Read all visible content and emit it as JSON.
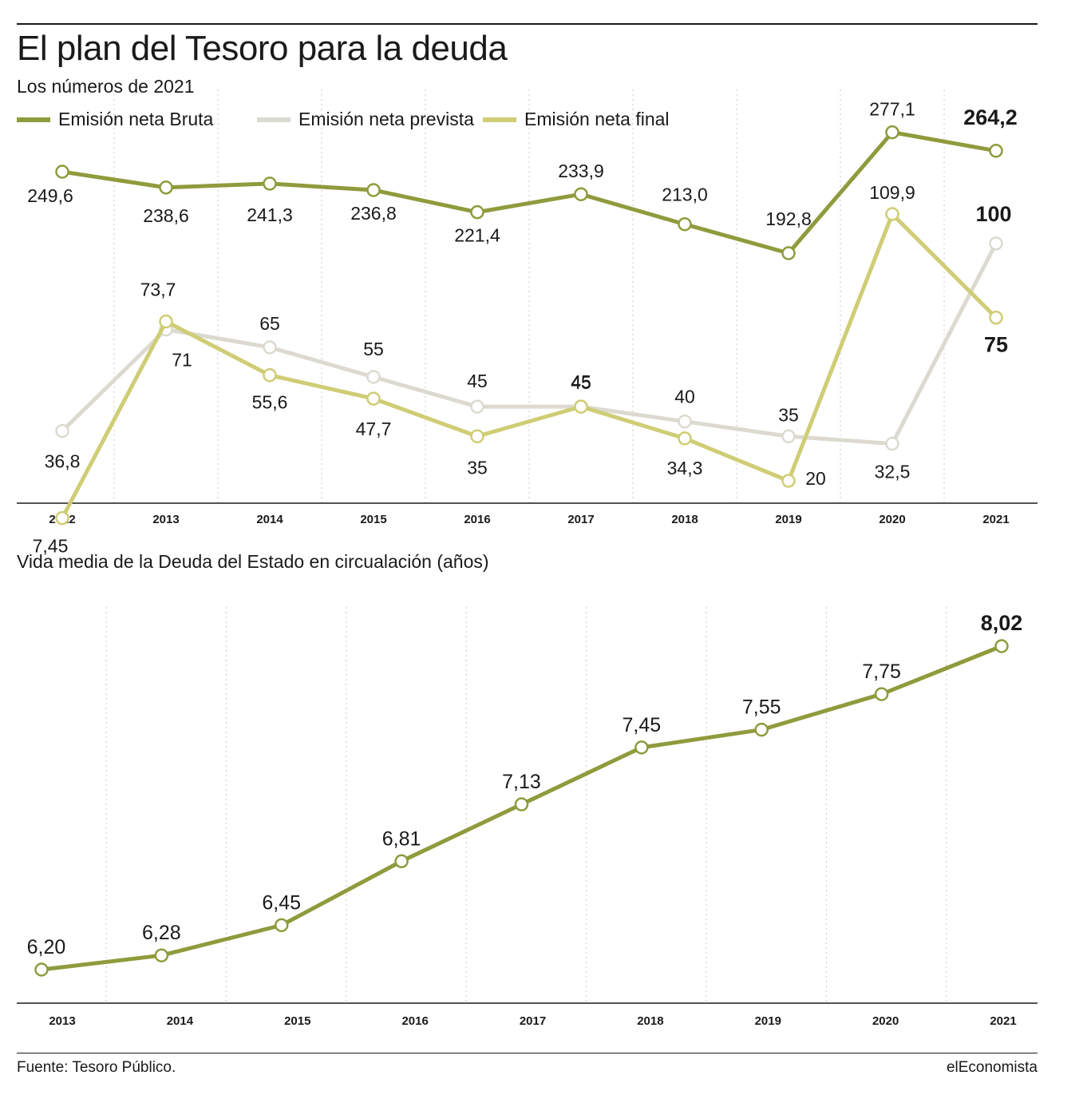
{
  "header": {
    "title": "El plan del Tesoro para la deuda",
    "subtitle": "Los números de 2021"
  },
  "chart_data": [
    {
      "type": "line",
      "categories": [
        "2012",
        "2013",
        "2014",
        "2015",
        "2016",
        "2017",
        "2018",
        "2019",
        "2020",
        "2021"
      ],
      "legend_placement": "top-left",
      "grid": "vertical dotted",
      "series": [
        {
          "name": "Emisión neta Bruta",
          "color": "#8f9b3c",
          "values": [
            249.6,
            238.6,
            241.3,
            236.8,
            221.4,
            233.9,
            213.0,
            192.8,
            277.1,
            264.2
          ],
          "labels": [
            "249,6",
            "238,6",
            "241,3",
            "236,8",
            "221,4",
            "233,9",
            "213,0",
            "192,8",
            "277,1",
            "264,2"
          ]
        },
        {
          "name": "Emisión neta prevista",
          "color": "#dcdad0",
          "values": [
            36.8,
            71,
            65,
            55,
            45,
            45,
            40,
            35,
            32.5,
            100
          ],
          "labels": [
            "36,8",
            "71",
            "65",
            "55",
            "45",
            "45",
            "40",
            "35",
            "32,5",
            "100"
          ]
        },
        {
          "name": "Emisión neta final",
          "color": "#cfcd75",
          "values": [
            7.45,
            73.7,
            55.6,
            47.7,
            35,
            45,
            34.3,
            20,
            109.9,
            75
          ],
          "labels": [
            "7,45",
            "73,7",
            "55,6",
            "47,7",
            "35",
            "45",
            "34,3",
            "20",
            "109,9",
            "75"
          ]
        }
      ]
    },
    {
      "type": "line",
      "title": "Vida media de la Deuda del Estado en circualación (años)",
      "categories": [
        "2013",
        "2014",
        "2015",
        "2016",
        "2017",
        "2018",
        "2019",
        "2020",
        "2021"
      ],
      "grid": "vertical dotted",
      "series": [
        {
          "color": "#8f9b3c",
          "values": [
            6.2,
            6.28,
            6.45,
            6.81,
            7.13,
            7.45,
            7.55,
            7.75,
            8.02
          ],
          "labels": [
            "6,20",
            "6,28",
            "6,45",
            "6,81",
            "7,13",
            "7,45",
            "7,55",
            "7,75",
            "8,02"
          ]
        }
      ]
    }
  ],
  "footer": {
    "source": "Fuente: Tesoro Público.",
    "brand": "elEconomista"
  }
}
